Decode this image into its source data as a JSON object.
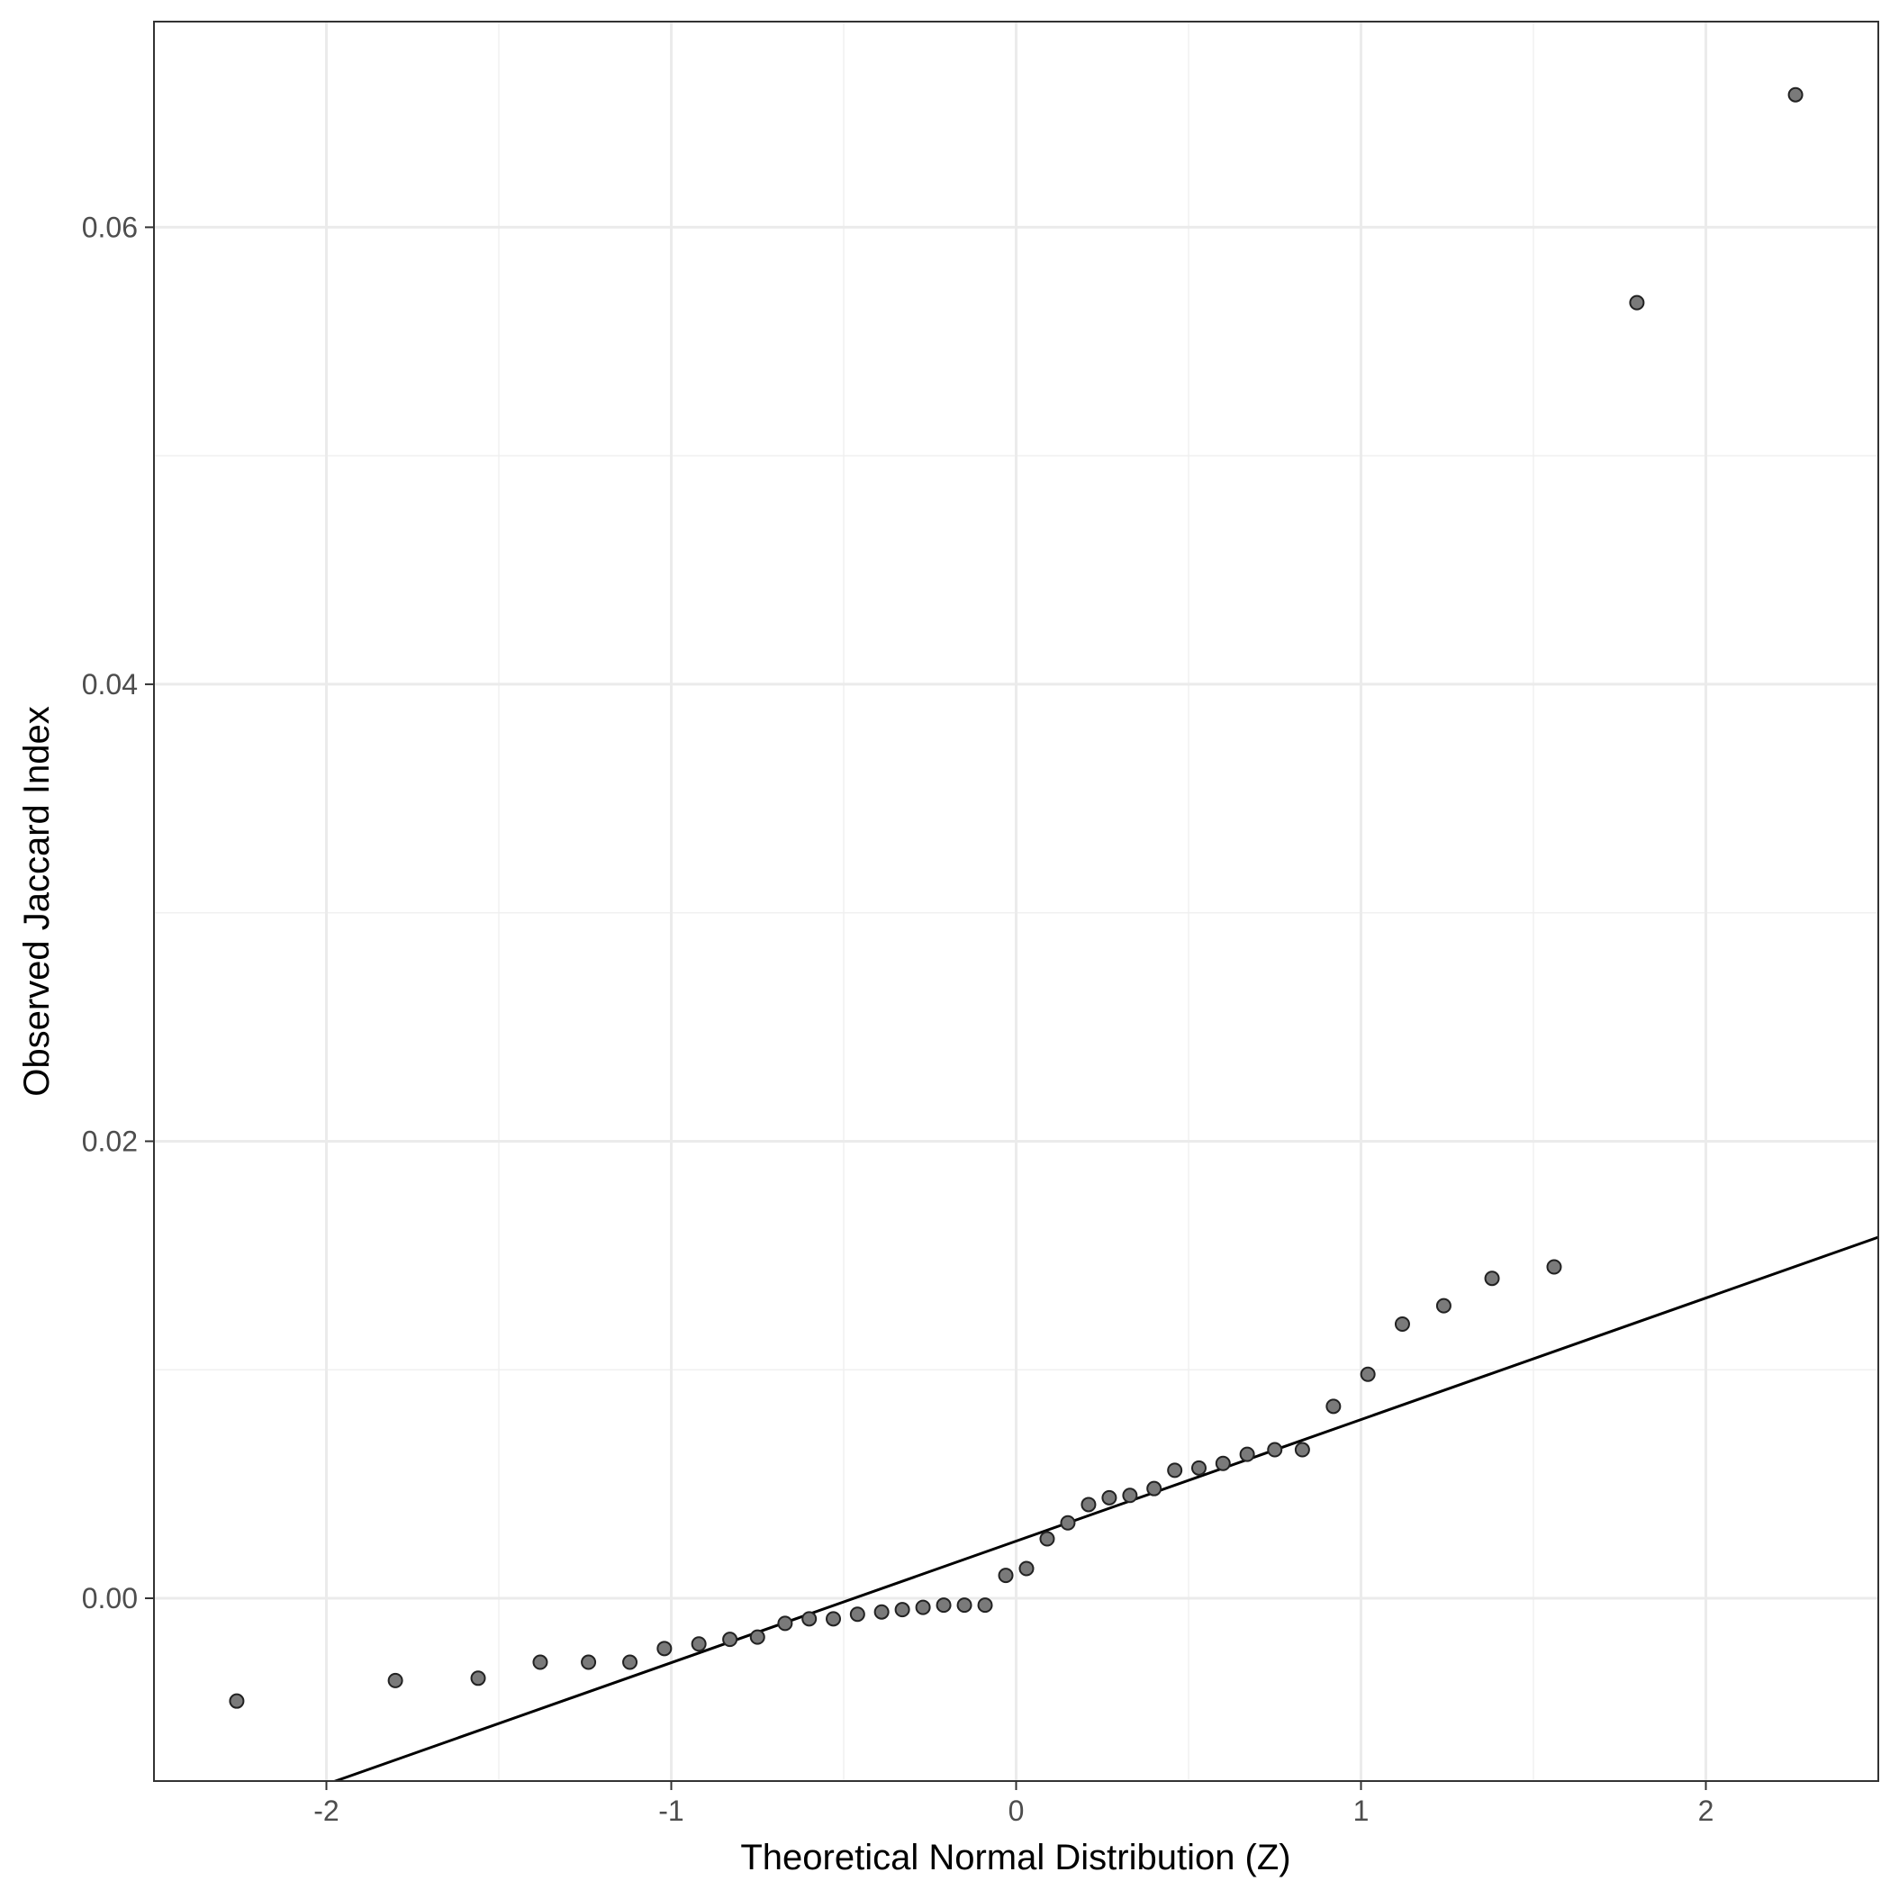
{
  "chart_data": {
    "type": "scatter",
    "xlabel": "Theoretical Normal Distribution (Z)",
    "ylabel": "Observed Jaccard Index",
    "xlim": [
      -2.5,
      2.5
    ],
    "ylim": [
      -0.008,
      0.069
    ],
    "x_ticks": [
      -2,
      -1,
      0,
      1,
      2
    ],
    "x_tick_labels": [
      "-2",
      "-1",
      "0",
      "1",
      "2"
    ],
    "y_ticks": [
      0.0,
      0.02,
      0.04,
      0.06
    ],
    "y_tick_labels": [
      "0.00",
      "0.02",
      "0.04",
      "0.06"
    ],
    "grid": true,
    "reference_line": {
      "x": [
        -2.5,
        2.5
      ],
      "y": [
        -0.0108,
        0.0158
      ]
    },
    "points": [
      {
        "x": -2.26,
        "y": -0.0045
      },
      {
        "x": -1.8,
        "y": -0.0036
      },
      {
        "x": -1.56,
        "y": -0.0035
      },
      {
        "x": -1.38,
        "y": -0.0028
      },
      {
        "x": -1.24,
        "y": -0.0028
      },
      {
        "x": -1.12,
        "y": -0.0028
      },
      {
        "x": -1.02,
        "y": -0.0022
      },
      {
        "x": -0.92,
        "y": -0.002
      },
      {
        "x": -0.83,
        "y": -0.0018
      },
      {
        "x": -0.75,
        "y": -0.0017
      },
      {
        "x": -0.67,
        "y": -0.0011
      },
      {
        "x": -0.6,
        "y": -0.0009
      },
      {
        "x": -0.53,
        "y": -0.0009
      },
      {
        "x": -0.46,
        "y": -0.0007
      },
      {
        "x": -0.39,
        "y": -0.0006
      },
      {
        "x": -0.33,
        "y": -0.0005
      },
      {
        "x": -0.27,
        "y": -0.0004
      },
      {
        "x": -0.21,
        "y": -0.0003
      },
      {
        "x": -0.15,
        "y": -0.0003
      },
      {
        "x": -0.09,
        "y": -0.0003
      },
      {
        "x": -0.03,
        "y": 0.001
      },
      {
        "x": 0.03,
        "y": 0.0013
      },
      {
        "x": 0.09,
        "y": 0.0026
      },
      {
        "x": 0.15,
        "y": 0.0033
      },
      {
        "x": 0.21,
        "y": 0.0041
      },
      {
        "x": 0.27,
        "y": 0.0044
      },
      {
        "x": 0.33,
        "y": 0.0045
      },
      {
        "x": 0.4,
        "y": 0.0048
      },
      {
        "x": 0.46,
        "y": 0.0056
      },
      {
        "x": 0.53,
        "y": 0.0057
      },
      {
        "x": 0.6,
        "y": 0.0059
      },
      {
        "x": 0.67,
        "y": 0.0063
      },
      {
        "x": 0.75,
        "y": 0.0065
      },
      {
        "x": 0.83,
        "y": 0.0065
      },
      {
        "x": 0.92,
        "y": 0.0084
      },
      {
        "x": 1.02,
        "y": 0.0098
      },
      {
        "x": 1.12,
        "y": 0.012
      },
      {
        "x": 1.24,
        "y": 0.0128
      },
      {
        "x": 1.38,
        "y": 0.014
      },
      {
        "x": 1.56,
        "y": 0.0145
      },
      {
        "x": 1.8,
        "y": 0.0567
      },
      {
        "x": 2.26,
        "y": 0.0658
      }
    ]
  }
}
